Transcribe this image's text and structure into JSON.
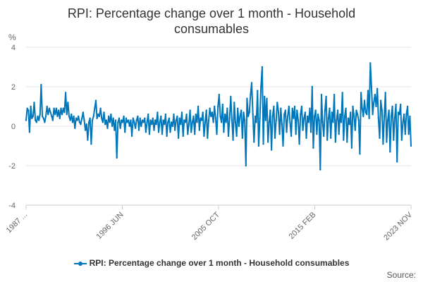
{
  "chart_data": {
    "type": "line",
    "title": "RPI: Percentage change over 1 month - Household consumables",
    "y_unit": "%",
    "ylim": [
      -4,
      4
    ],
    "y_ticks": [
      -4,
      -2,
      0,
      2,
      4
    ],
    "x_tick_labels": [
      "1987 ...",
      "1996 JUN",
      "2005 OCT",
      "2015 FEB",
      "2023 NOV"
    ],
    "x_start": "1987-02",
    "x_end": "2023-11",
    "grid": true,
    "legend_position": "bottom",
    "series": [
      {
        "name": "RPI: Percentage change over 1 month - Household consumables",
        "color": "#0077BB",
        "values": [
          0.3,
          0.9,
          0.8,
          -0.3,
          1.0,
          0.4,
          0.5,
          1.2,
          0.3,
          0.2,
          0.5,
          0.3,
          0.6,
          2.1,
          0.5,
          0.4,
          0.2,
          0.5,
          1.0,
          0.6,
          0.9,
          0.7,
          0.5,
          0.3,
          0.9,
          0.6,
          0.9,
          0.5,
          0.8,
          0.4,
          0.9,
          0.6,
          0.9,
          0.7,
          1.7,
          0.6,
          1.2,
          0.5,
          0.3,
          0.6,
          0.2,
          0.5,
          -0.1,
          0.4,
          0.3,
          0.5,
          0.2,
          0.1,
          0.4,
          0.7,
          0.3,
          -0.2,
          0.1,
          -0.7,
          0.2,
          0.4,
          -0.9,
          0.3,
          0.5,
          0.9,
          1.3,
          0.4,
          0.6,
          0.5,
          0.9,
          0.4,
          0.2,
          0.7,
          0.1,
          0.3,
          -0.1,
          0.5,
          0.2,
          0.6,
          0.0,
          0.4,
          -0.2,
          0.3,
          -1.6,
          0.2,
          0.4,
          -0.1,
          0.3,
          0.2,
          0.5,
          -0.3,
          0.4,
          0.2,
          0.3,
          0.0,
          0.3,
          -0.5,
          0.4,
          0.2,
          -0.1,
          0.3,
          0.5,
          -0.2,
          0.4,
          0.0,
          0.3,
          0.2,
          0.4,
          -0.3,
          0.2,
          0.6,
          -0.4,
          0.3,
          0.1,
          0.4,
          -0.2,
          0.3,
          0.1,
          0.7,
          -0.3,
          0.2,
          0.5,
          -0.4,
          0.3,
          0.1,
          0.6,
          -0.5,
          0.2,
          0.4,
          -0.3,
          0.2,
          0.0,
          0.6,
          -0.2,
          0.3,
          0.5,
          -0.6,
          0.4,
          0.1,
          0.7,
          -0.5,
          0.3,
          0.2,
          0.6,
          -0.4,
          0.1,
          0.8,
          -0.3,
          0.2,
          0.5,
          -0.4,
          0.6,
          0.2,
          1.0,
          -0.2,
          0.4,
          0.3,
          0.7,
          -0.5,
          0.2,
          0.8,
          -0.6,
          0.3,
          0.9,
          0.5,
          0.7,
          0.2,
          1.0,
          0.4,
          -0.4,
          1.0,
          1.6,
          0.5,
          0.2,
          1.1,
          -0.3,
          0.6,
          0.2,
          0.9,
          -0.5,
          0.4,
          1.5,
          0.3,
          -0.7,
          1.2,
          0.2,
          -0.5,
          0.9,
          0.0,
          0.5,
          0.8,
          -0.6,
          0.7,
          0.3,
          -2.0,
          1.4,
          0.5,
          0.7,
          1.6,
          2.2,
          0.6,
          -0.8,
          0.5,
          0.2,
          1.8,
          -1.0,
          0.4,
          2.0,
          3.0,
          -0.9,
          1.5,
          0.3,
          1.4,
          -0.8,
          0.2,
          0.8,
          -1.2,
          0.5,
          1.0,
          -0.6,
          0.3,
          1.2,
          0.7,
          -0.4,
          0.9,
          0.1,
          -1.0,
          0.6,
          0.8,
          -0.3,
          0.5,
          1.0,
          0.2,
          -0.5,
          0.9,
          0.4,
          1.0,
          -0.4,
          0.8,
          0.3,
          -0.9,
          0.6,
          1.0,
          -0.2,
          0.4,
          0.7,
          -0.6,
          0.5,
          0.2,
          0.9,
          -0.3,
          2.0,
          -1.1,
          0.5,
          0.8,
          -0.4,
          0.6,
          0.3,
          -2.2,
          1.6,
          0.2,
          -0.5,
          0.8,
          1.5,
          -0.7,
          0.4,
          0.9,
          -0.6,
          0.7,
          0.2,
          1.6,
          -0.8,
          0.3,
          0.8,
          -0.4,
          0.6,
          0.2,
          1.7,
          -0.7,
          0.5,
          0.9,
          -0.8,
          0.4,
          0.1,
          0.7,
          -1.1,
          1.0,
          0.5,
          -0.2,
          0.8,
          0.6,
          0.3,
          -1.4,
          1.7,
          0.9,
          0.5,
          1.3,
          0.7,
          0.6,
          1.8,
          0.4,
          3.2,
          2.0,
          0.6,
          1.2,
          1.6,
          1.0,
          1.9,
          0.4,
          -0.6,
          1.3,
          0.8,
          -0.9,
          0.5,
          1.7,
          -0.8,
          0.3,
          0.8,
          -1.3,
          0.5,
          1.0,
          -0.7,
          0.4,
          1.1,
          -1.8,
          0.7,
          0.6,
          1.1,
          -0.7,
          0.2,
          0.6,
          -0.4,
          0.6,
          1.0,
          -0.4,
          0.5,
          -1.0
        ]
      }
    ]
  },
  "credit": "Source:"
}
